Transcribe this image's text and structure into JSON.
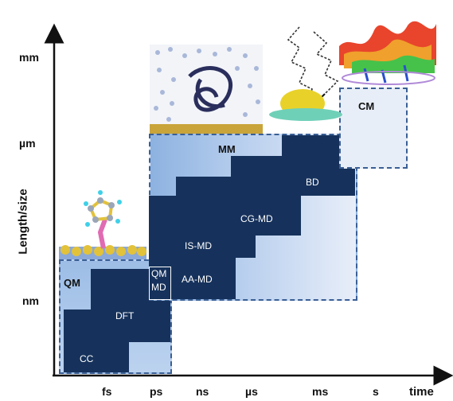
{
  "axes": {
    "y_label": "Length/size",
    "x_label": "time",
    "y_ticks": [
      "mm",
      "µm",
      "nm"
    ],
    "x_ticks": [
      "fs",
      "ps",
      "ns",
      "µs",
      "ms",
      "s"
    ]
  },
  "regions": {
    "qm": "QM",
    "mm": "MM",
    "cm": "CM"
  },
  "methods": {
    "cc": "CC",
    "dft": "DFT",
    "qmmd_line1": "QM",
    "qmmd_line2": "MD",
    "aa_md": "AA-MD",
    "is_md": "IS-MD",
    "cg_md": "CG-MD",
    "bd": "BD"
  },
  "colors": {
    "dark_box": "#16325c",
    "region_border": "#3a5f95",
    "light_blue": "#9dbde6"
  }
}
